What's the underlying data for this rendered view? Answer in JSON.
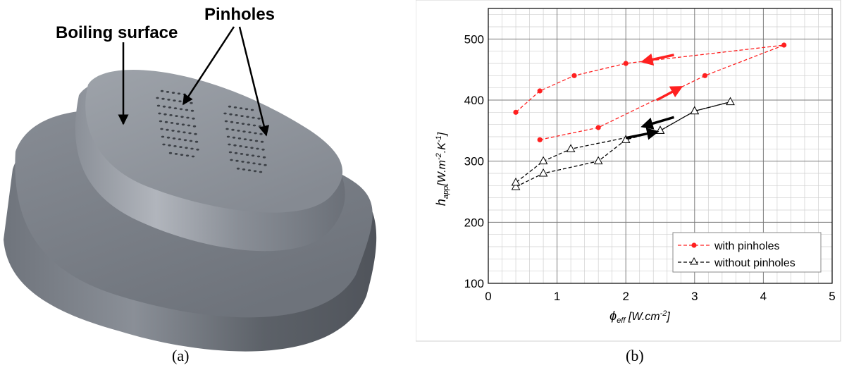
{
  "figure_a": {
    "panel_label": "(a)",
    "annotation_boiling": "Boiling surface",
    "annotation_pinholes": "Pinholes"
  },
  "figure_b": {
    "panel_label": "(b)"
  },
  "chart_data": {
    "type": "line",
    "xlabel_symbol": "ϕ",
    "xlabel_sub": "eff",
    "xlabel_unit": " [W.cm",
    "xlabel_exp": "-2",
    "xlabel_end": "]",
    "ylabel_symbol": "h",
    "ylabel_sub": "app",
    "ylabel_unit_a": "[W.m",
    "ylabel_exp_a": "-2",
    "ylabel_unit_b": ".K",
    "ylabel_exp_b": "-1",
    "ylabel_end": "]",
    "xlim": [
      0,
      5
    ],
    "ylim": [
      100,
      550
    ],
    "xticks": [
      "0",
      "1",
      "2",
      "3",
      "4",
      "5"
    ],
    "yticks": [
      "100",
      "200",
      "300",
      "400",
      "500"
    ],
    "grid": true,
    "legend_position": "bottom-right",
    "series": [
      {
        "name": "with pinholes",
        "color": "#ff2020",
        "marker": "circle",
        "line": "dashed",
        "points": [
          [
            0.75,
            335
          ],
          [
            1.6,
            355
          ],
          [
            3.15,
            440
          ],
          [
            4.3,
            490
          ],
          [
            2.0,
            460
          ],
          [
            1.25,
            440
          ],
          [
            0.75,
            415
          ],
          [
            0.4,
            380
          ]
        ]
      },
      {
        "name": "without pinholes",
        "color": "#000000",
        "marker": "open-triangle",
        "line": "dashed",
        "points": [
          [
            0.4,
            258
          ],
          [
            0.8,
            280
          ],
          [
            1.6,
            300
          ],
          [
            2.0,
            335
          ],
          [
            2.5,
            350
          ],
          [
            3.0,
            382
          ],
          [
            3.52,
            397
          ],
          [
            3.0,
            382
          ],
          [
            2.5,
            350
          ],
          [
            1.2,
            320
          ],
          [
            0.8,
            300
          ],
          [
            0.4,
            265
          ]
        ]
      }
    ],
    "arrows": [
      {
        "color": "#ff2020",
        "from": [
          2.7,
          474
        ],
        "to": [
          2.25,
          463
        ]
      },
      {
        "color": "#ff2020",
        "from": [
          2.45,
          400
        ],
        "to": [
          2.8,
          421
        ]
      },
      {
        "color": "#000000",
        "from": [
          2.7,
          372
        ],
        "to": [
          2.25,
          357
        ]
      },
      {
        "color": "#000000",
        "from": [
          2.0,
          338
        ],
        "to": [
          2.45,
          348
        ]
      }
    ]
  }
}
